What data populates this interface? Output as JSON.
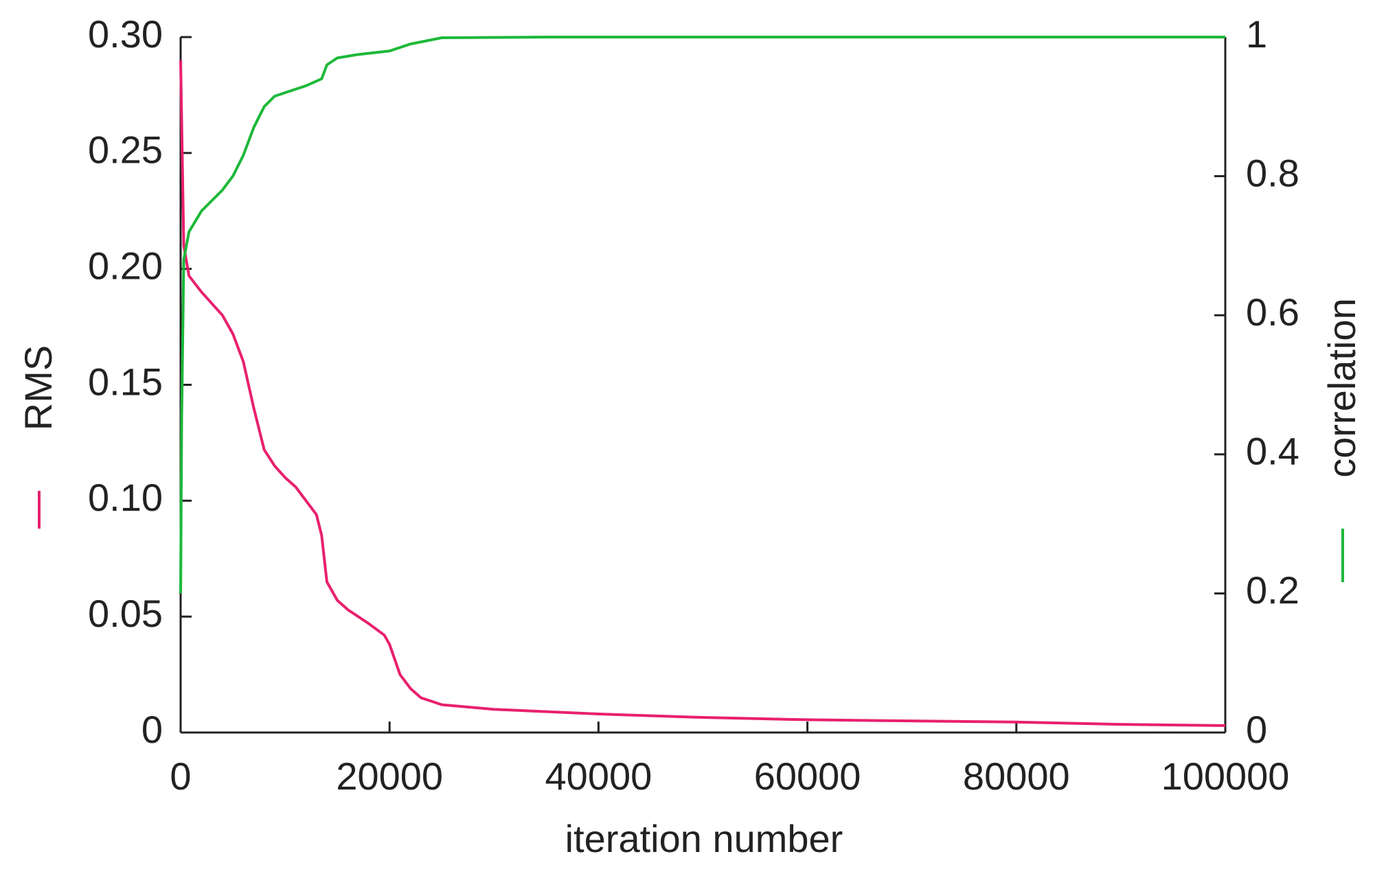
{
  "chart_data": {
    "type": "line",
    "x_label": "iteration number",
    "y_label": "RMS",
    "y2_label": "correlation",
    "xlim": [
      0,
      100000
    ],
    "xticks": [
      0,
      20000,
      40000,
      60000,
      80000,
      100000
    ],
    "ylim": [
      0,
      0.3
    ],
    "yticks": [
      0,
      0.05,
      {
        "value": 0.1,
        "label": "0.10"
      },
      0.15,
      {
        "value": 0.2,
        "label": "0.20"
      },
      0.25,
      {
        "value": 0.3,
        "label": "0.30"
      }
    ],
    "y2lim": [
      0,
      1
    ],
    "y2ticks": [
      0,
      0.2,
      0.4,
      0.6,
      0.8,
      1
    ],
    "grid": false,
    "series": [
      {
        "name": "RMS",
        "color": "#e8206e",
        "x": [
          0,
          300,
          800,
          2000,
          4000,
          5000,
          6000,
          7000,
          8000,
          9000,
          10000,
          11000,
          12000,
          13000,
          13500,
          14000,
          15000,
          16000,
          18000,
          19500,
          20000,
          21000,
          22000,
          23000,
          25000,
          30000,
          40000,
          50000,
          60000,
          70000,
          80000,
          90000,
          100000
        ],
        "values": [
          0.29,
          0.21,
          0.197,
          0.19,
          0.18,
          0.172,
          0.16,
          0.14,
          0.122,
          0.115,
          0.11,
          0.106,
          0.1,
          0.094,
          0.085,
          0.065,
          0.057,
          0.053,
          0.047,
          0.042,
          0.038,
          0.025,
          0.019,
          0.015,
          0.012,
          0.01,
          0.008,
          0.0065,
          0.0055,
          0.005,
          0.0045,
          0.0035,
          0.003
        ]
      },
      {
        "name": "correlation",
        "color": "#1db83a",
        "axis": "y2",
        "x": [
          0,
          100,
          300,
          800,
          2000,
          4000,
          5000,
          6000,
          7000,
          8000,
          9000,
          10000,
          12000,
          13500,
          14000,
          15000,
          17000,
          20000,
          22000,
          25000,
          35000,
          100000
        ],
        "values": [
          0.2,
          0.45,
          0.68,
          0.72,
          0.75,
          0.78,
          0.8,
          0.83,
          0.87,
          0.9,
          0.915,
          0.92,
          0.93,
          0.94,
          0.96,
          0.97,
          0.975,
          0.98,
          0.99,
          0.999,
          1,
          1
        ]
      }
    ]
  }
}
